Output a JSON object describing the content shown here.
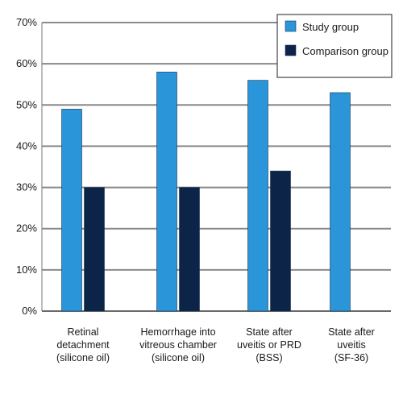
{
  "chart_data": {
    "type": "bar",
    "title": "",
    "xlabel": "",
    "ylabel": "",
    "ylim": [
      0,
      70
    ],
    "yticks": [
      "0%",
      "10%",
      "20%",
      "30%",
      "40%",
      "50%",
      "60%",
      "70%"
    ],
    "ytick_values": [
      0,
      10,
      20,
      30,
      40,
      50,
      60,
      70
    ],
    "grid": true,
    "legend_position": "top-right",
    "categories": [
      [
        "Retinal",
        "detachment",
        "(silicone oil)"
      ],
      [
        "Hemorrhage into",
        "vitreous chamber",
        "(silicone oil)"
      ],
      [
        "State after",
        "uveitis or PRD",
        "(BSS)"
      ],
      [
        "State after",
        "uveitis",
        "(SF-36)"
      ]
    ],
    "series": [
      {
        "name": "Study group",
        "color": "#2a95d8",
        "values": [
          49,
          58,
          56,
          53
        ]
      },
      {
        "name": "Comparison group",
        "color": "#0c2447",
        "values": [
          30,
          30,
          34,
          null
        ]
      }
    ]
  }
}
